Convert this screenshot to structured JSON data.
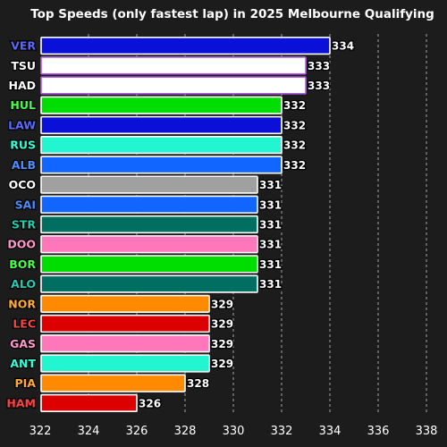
{
  "chart_data": {
    "type": "bar",
    "orientation": "horizontal",
    "title": "Top Speeds (only fastest lap) in 2025 Melbourne Qualifying",
    "xlabel": "",
    "ylabel": "",
    "xlim": [
      322,
      338
    ],
    "xticks": [
      322,
      324,
      326,
      328,
      330,
      332,
      334,
      336,
      338
    ],
    "grid": "vertical dashed",
    "categories": [
      "VER",
      "TSU",
      "HAD",
      "HUL",
      "LAW",
      "RUS",
      "ALB",
      "OCO",
      "SAI",
      "STR",
      "DOO",
      "BOR",
      "ALO",
      "NOR",
      "LEC",
      "GAS",
      "ANT",
      "PIA",
      "HAM"
    ],
    "values": [
      334,
      333,
      333,
      332,
      332,
      332,
      332,
      331,
      331,
      331,
      331,
      331,
      331,
      329,
      329,
      329,
      329,
      328,
      326
    ],
    "bar_colors": [
      "#0a10d8",
      "#ffffff",
      "#ffffff",
      "#00dd00",
      "#0a10d8",
      "#22f5d0",
      "#1166ff",
      "#a0a0a0",
      "#1166ff",
      "#006f62",
      "#ff77bb",
      "#00dd00",
      "#006f62",
      "#ff8a00",
      "#dd0000",
      "#ff77bb",
      "#22f5d0",
      "#ff8a00",
      "#dd0000"
    ],
    "bar_outlines": [
      "#ffffff",
      "#b060e0",
      "#b060e0",
      "#ffffff",
      "#ffffff",
      "#ffffff",
      "#ffffff",
      "#ffffff",
      "#ffffff",
      "#ffffff",
      "#ffffff",
      "#ffffff",
      "#ffffff",
      "#ffffff",
      "#ffffff",
      "#ffffff",
      "#ffffff",
      "#ffffff",
      "#ffffff"
    ],
    "label_colors": [
      "#5a6aff",
      "#ffffff",
      "#ffffff",
      "#44ff44",
      "#5a6aff",
      "#33ffdd",
      "#4d8dff",
      "#ffffff",
      "#4d8dff",
      "#22ccb0",
      "#ff99cc",
      "#44ff44",
      "#22ccb0",
      "#ffaa33",
      "#ff4444",
      "#ff99cc",
      "#33ffdd",
      "#ffaa33",
      "#ff4444"
    ]
  }
}
